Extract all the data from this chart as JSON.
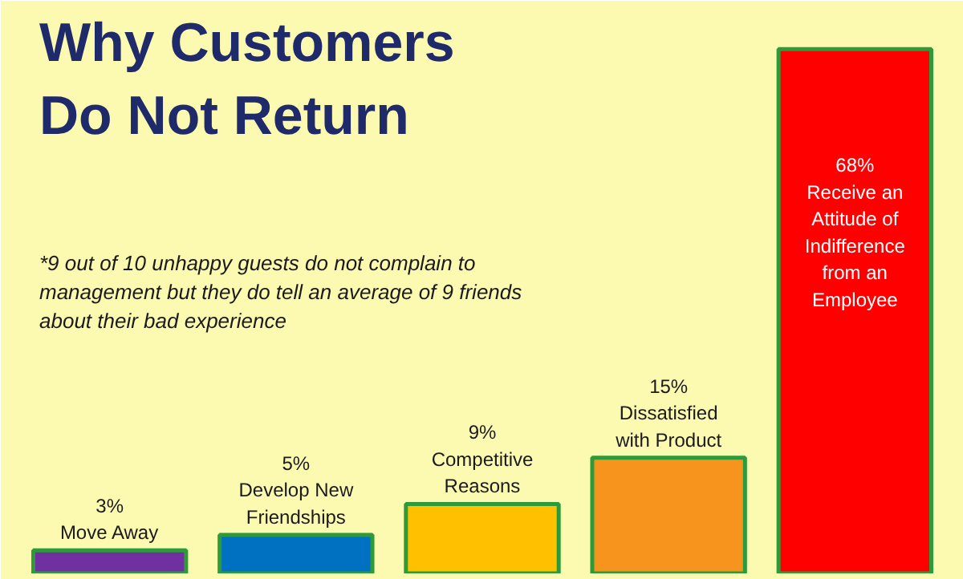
{
  "chart_data": {
    "type": "bar",
    "title": "Why Customers Do Not Return",
    "categories": [
      "Move Away",
      "Develop New Friendships",
      "Competitive Reasons",
      "Dissatisfied with Product",
      "Receive an Attitude of Indifference from an Employee"
    ],
    "values": [
      3,
      5,
      9,
      15,
      68
    ],
    "colors": [
      "#7030a0",
      "#0070c0",
      "#ffc000",
      "#f7941d",
      "#ff0000"
    ],
    "value_labels": [
      "3%",
      "5%",
      "9%",
      "15%",
      "68%"
    ],
    "annotations": [
      "*9  out of 10 unhappy guests do not complain to management but they do tell an average of 9 friends about their bad experience"
    ],
    "grid": false
  }
}
